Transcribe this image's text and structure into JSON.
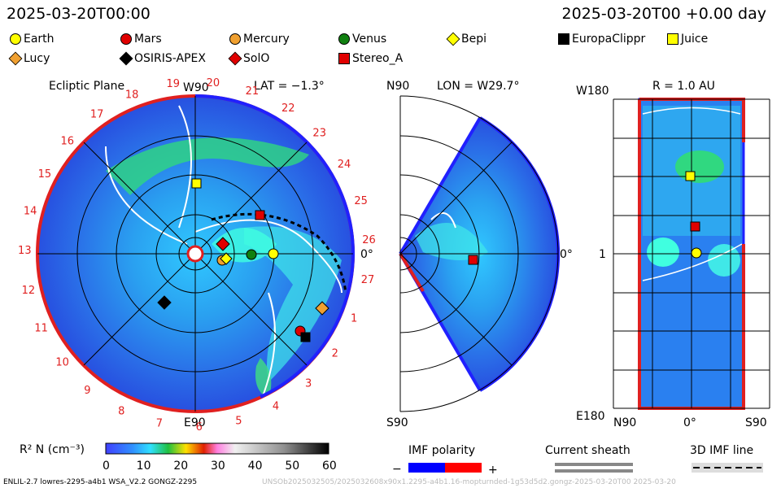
{
  "header": {
    "left_datetime": "2025-03-20T00:00",
    "right_datetime": "2025-03-20T00 +0.00 day"
  },
  "legend": [
    {
      "label": "Earth",
      "shape": "circle",
      "color": "#ffff00"
    },
    {
      "label": "Mars",
      "shape": "circle",
      "color": "#e00000"
    },
    {
      "label": "Mercury",
      "shape": "circle",
      "color": "#f0a030"
    },
    {
      "label": "Venus",
      "shape": "circle",
      "color": "#108010"
    },
    {
      "label": "Bepi",
      "shape": "diamond",
      "color": "#ffff00"
    },
    {
      "label": "EuropaClippr",
      "shape": "square",
      "color": "#000000"
    },
    {
      "label": "Juice",
      "shape": "square",
      "color": "#ffff00"
    },
    {
      "label": "Lucy",
      "shape": "diamond",
      "color": "#f0a030"
    },
    {
      "label": "OSIRIS-APEX",
      "shape": "diamond",
      "color": "#000000"
    },
    {
      "label": "SolO",
      "shape": "diamond",
      "color": "#e00000"
    },
    {
      "label": "Stereo_A",
      "shape": "square",
      "color": "#e00000"
    }
  ],
  "panel1": {
    "title": "Ecliptic Plane",
    "lat_label": "LAT = −1.3°",
    "top_label": "W90",
    "bottom_label": "E90",
    "right_label": "0°",
    "carrington": [
      "19",
      "20",
      "21",
      "22",
      "23",
      "24",
      "25",
      "26",
      "27",
      "1",
      "2",
      "3",
      "4",
      "5",
      "6",
      "7",
      "8",
      "9",
      "10",
      "11",
      "12",
      "13",
      "14",
      "15",
      "16",
      "17",
      "18"
    ]
  },
  "panel2": {
    "lon_label": "LON = W29.7°",
    "top_label": "N90",
    "bottom_label": "S90",
    "right_label": "0°"
  },
  "panel3": {
    "r_label": "R = 1.0 AU",
    "top_left": "W180",
    "mid_left": "1",
    "bottom_left": "E180",
    "bottom_labels": [
      "N90",
      "0°",
      "S90"
    ]
  },
  "colorbar": {
    "label": "R² N (cm⁻³)",
    "ticks": [
      "0",
      "10",
      "20",
      "30",
      "40",
      "50",
      "60"
    ]
  },
  "imf": {
    "title": "IMF polarity",
    "minus": "−",
    "plus": "+"
  },
  "sheath": {
    "title": "Current sheath"
  },
  "imf3d": {
    "title": "3D IMF line"
  },
  "footer": {
    "left": "ENLIL-2.7 lowres-2295-a4b1 WSA_V2.2 GONGZ-2295",
    "right": "UNSOb2025032505/2025032608x90x1.2295-a4b1.16-mopturnded-1g53d5d2.gongz-2025-03-20T00   2025-03-20"
  },
  "colors": {
    "accent_red": "#e02020",
    "polarity_blue": "#0000ff",
    "polarity_red": "#ff0000"
  }
}
